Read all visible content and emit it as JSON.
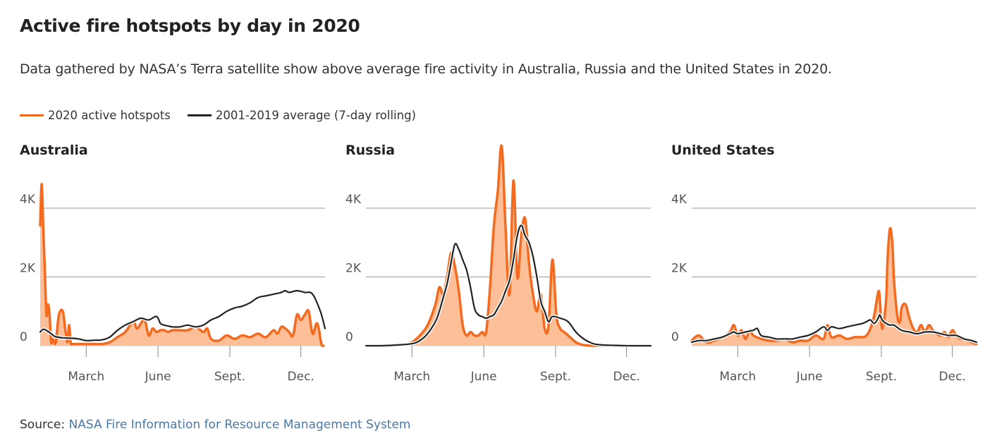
{
  "title": "Active fire hotspots by day in 2020",
  "subtitle": "Data gathered by NASA’s Terra satellite show above average fire activity in Australia, Russia and the United States in 2020.",
  "legend": {
    "hotspots_label": "2020 active hotspots",
    "average_label": "2001-2019 average (7-day rolling)"
  },
  "colors": {
    "hotspots_line": "#f26b21",
    "hotspots_fill": "#fcbf98",
    "average_line": "#222222",
    "grid": "#999999",
    "text": "#222222",
    "axis_label": "#555555",
    "link": "#4a78a8"
  },
  "source": {
    "prefix": "Source:",
    "link_text": "NASA Fire Information for Resource Management System"
  },
  "chart_data": [
    {
      "type": "area",
      "title": "Australia",
      "xlabel": "",
      "ylabel": "",
      "ylim": [
        0,
        4000
      ],
      "y_ticks": [
        0,
        2000,
        4000
      ],
      "y_tick_labels": [
        "0",
        "2K",
        "4K"
      ],
      "xlim": [
        1,
        366
      ],
      "x_ticks": [
        60,
        152,
        244,
        335
      ],
      "x_tick_labels": [
        "March",
        "June",
        "Sept.",
        "Dec."
      ],
      "grid": true,
      "series": [
        {
          "name": "2020 active hotspots",
          "x": [
            1,
            3,
            5,
            7,
            9,
            11,
            13,
            15,
            17,
            19,
            21,
            25,
            30,
            33,
            36,
            38,
            40,
            42,
            45,
            50,
            60,
            70,
            80,
            90,
            100,
            110,
            120,
            125,
            130,
            135,
            140,
            145,
            150,
            155,
            160,
            165,
            170,
            180,
            190,
            200,
            210,
            215,
            220,
            230,
            240,
            250,
            260,
            270,
            280,
            290,
            300,
            305,
            310,
            315,
            320,
            325,
            330,
            335,
            340,
            345,
            350,
            355,
            358,
            360,
            362,
            364
          ],
          "y": [
            3500,
            4700,
            3400,
            2200,
            900,
            1200,
            900,
            100,
            200,
            100,
            100,
            900,
            1000,
            500,
            100,
            600,
            100,
            50,
            50,
            50,
            50,
            50,
            50,
            100,
            250,
            400,
            700,
            500,
            650,
            750,
            300,
            500,
            400,
            450,
            450,
            400,
            450,
            450,
            450,
            550,
            400,
            500,
            200,
            150,
            300,
            200,
            300,
            250,
            350,
            250,
            450,
            350,
            550,
            500,
            400,
            300,
            900,
            750,
            900,
            1000,
            350,
            650,
            500,
            200,
            0,
            0
          ]
        },
        {
          "name": "2001-2019 average (7-day rolling)",
          "x": [
            1,
            5,
            10,
            15,
            20,
            30,
            40,
            50,
            60,
            70,
            80,
            90,
            100,
            110,
            120,
            130,
            140,
            150,
            155,
            160,
            170,
            180,
            190,
            200,
            210,
            220,
            230,
            240,
            250,
            260,
            270,
            280,
            290,
            300,
            310,
            315,
            320,
            330,
            340,
            350,
            360,
            366
          ],
          "y": [
            400,
            480,
            430,
            350,
            270,
            230,
            220,
            200,
            150,
            160,
            170,
            250,
            450,
            600,
            700,
            800,
            750,
            850,
            650,
            600,
            550,
            550,
            600,
            550,
            600,
            750,
            850,
            1000,
            1100,
            1150,
            1250,
            1400,
            1450,
            1500,
            1550,
            1600,
            1550,
            1600,
            1550,
            1500,
            1000,
            500
          ]
        }
      ]
    },
    {
      "type": "area",
      "title": "Russia",
      "xlabel": "",
      "ylabel": "",
      "ylim": [
        0,
        4000
      ],
      "y_ticks": [
        0,
        2000,
        4000
      ],
      "y_tick_labels": [
        "0",
        "2K",
        "4K"
      ],
      "xlim": [
        1,
        366
      ],
      "x_ticks": [
        60,
        152,
        244,
        335
      ],
      "x_tick_labels": [
        "March",
        "June",
        "Sept.",
        "Dec."
      ],
      "grid": true,
      "series": [
        {
          "name": "2020 active hotspots",
          "x": [
            1,
            20,
            40,
            50,
            60,
            70,
            80,
            90,
            95,
            100,
            105,
            110,
            115,
            120,
            125,
            130,
            135,
            140,
            145,
            150,
            155,
            160,
            165,
            170,
            175,
            180,
            185,
            190,
            195,
            200,
            205,
            210,
            215,
            220,
            225,
            230,
            235,
            240,
            245,
            250,
            255,
            260,
            265,
            270,
            275,
            280,
            285,
            290,
            300,
            320,
            340,
            366
          ],
          "y": [
            0,
            0,
            20,
            40,
            100,
            300,
            600,
            1200,
            1700,
            1500,
            2000,
            2700,
            2300,
            1600,
            600,
            300,
            400,
            300,
            300,
            400,
            400,
            1700,
            3500,
            4500,
            5800,
            3400,
            1500,
            4800,
            2000,
            3200,
            3700,
            2400,
            1500,
            1000,
            1500,
            500,
            600,
            2500,
            900,
            500,
            400,
            300,
            200,
            100,
            50,
            20,
            10,
            0,
            0,
            0,
            0,
            0
          ]
        },
        {
          "name": "2001-2019 average (7-day rolling)",
          "x": [
            1,
            20,
            40,
            60,
            70,
            80,
            90,
            95,
            100,
            105,
            110,
            115,
            120,
            125,
            130,
            135,
            140,
            145,
            150,
            155,
            160,
            165,
            170,
            175,
            180,
            185,
            190,
            195,
            200,
            205,
            210,
            215,
            220,
            225,
            230,
            235,
            240,
            250,
            260,
            270,
            280,
            290,
            300,
            320,
            340,
            366
          ],
          "y": [
            0,
            0,
            20,
            60,
            150,
            350,
            700,
            1000,
            1400,
            1800,
            2400,
            2950,
            2800,
            2500,
            2200,
            1700,
            1100,
            900,
            850,
            800,
            850,
            900,
            1100,
            1300,
            1600,
            1900,
            2500,
            3200,
            3500,
            3200,
            3000,
            2600,
            2000,
            1300,
            1000,
            700,
            850,
            800,
            700,
            400,
            200,
            80,
            30,
            10,
            0,
            0
          ]
        }
      ]
    },
    {
      "type": "area",
      "title": "United States",
      "xlabel": "",
      "ylabel": "",
      "ylim": [
        0,
        4000
      ],
      "y_ticks": [
        0,
        2000,
        4000
      ],
      "y_tick_labels": [
        "0",
        "2K",
        "4K"
      ],
      "xlim": [
        1,
        366
      ],
      "x_ticks": [
        60,
        152,
        244,
        335
      ],
      "x_tick_labels": [
        "March",
        "June",
        "Sept.",
        "Dec."
      ],
      "grid": true,
      "series": [
        {
          "name": "2020 active hotspots",
          "x": [
            1,
            10,
            20,
            30,
            40,
            50,
            55,
            60,
            65,
            70,
            75,
            80,
            90,
            100,
            110,
            120,
            130,
            140,
            150,
            160,
            170,
            175,
            180,
            190,
            200,
            210,
            220,
            225,
            230,
            235,
            240,
            242,
            245,
            250,
            252,
            255,
            258,
            260,
            262,
            265,
            268,
            270,
            275,
            280,
            285,
            290,
            295,
            300,
            305,
            310,
            315,
            320,
            325,
            330,
            335,
            340,
            345,
            350,
            355,
            360,
            366
          ],
          "y": [
            150,
            300,
            100,
            150,
            250,
            400,
            600,
            300,
            450,
            200,
            450,
            300,
            200,
            150,
            150,
            200,
            100,
            150,
            150,
            300,
            200,
            600,
            250,
            300,
            200,
            250,
            250,
            300,
            500,
            900,
            1550,
            1400,
            500,
            1300,
            2500,
            3400,
            3000,
            2000,
            1400,
            800,
            700,
            1100,
            1200,
            800,
            500,
            400,
            600,
            400,
            600,
            450,
            350,
            300,
            400,
            250,
            450,
            300,
            200,
            200,
            150,
            100,
            50
          ]
        },
        {
          "name": "2001-2019 average (7-day rolling)",
          "x": [
            1,
            10,
            20,
            30,
            40,
            50,
            55,
            60,
            70,
            80,
            85,
            90,
            100,
            110,
            120,
            130,
            140,
            150,
            160,
            170,
            175,
            180,
            190,
            200,
            210,
            220,
            225,
            230,
            235,
            240,
            242,
            245,
            250,
            255,
            260,
            270,
            280,
            290,
            300,
            310,
            320,
            330,
            340,
            350,
            360,
            366
          ],
          "y": [
            100,
            150,
            150,
            200,
            250,
            350,
            400,
            350,
            400,
            450,
            500,
            300,
            250,
            200,
            200,
            200,
            250,
            300,
            400,
            550,
            450,
            550,
            500,
            550,
            600,
            650,
            700,
            750,
            650,
            800,
            900,
            750,
            650,
            600,
            600,
            450,
            400,
            350,
            400,
            400,
            350,
            300,
            300,
            200,
            150,
            100
          ]
        }
      ]
    }
  ]
}
